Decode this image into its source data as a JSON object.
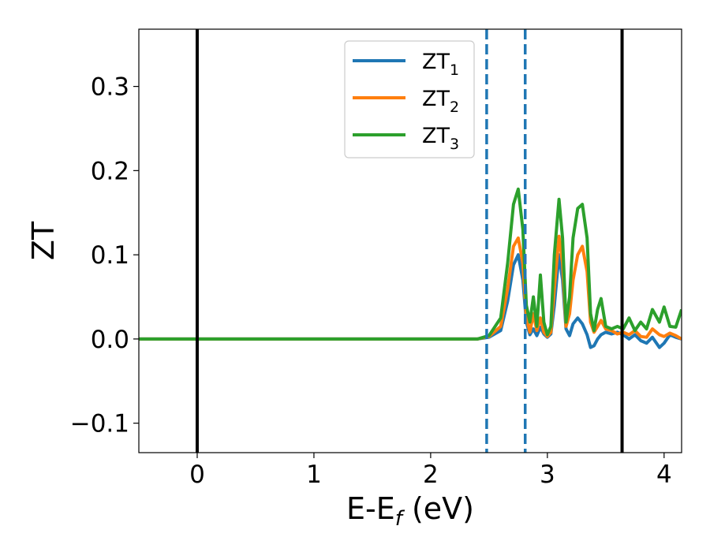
{
  "chart_data": {
    "type": "line",
    "xlabel": "E-E",
    "xlabel_sub": "f",
    "xlabel_unit": " (eV)",
    "ylabel": "ZT",
    "xlim": [
      -0.5,
      4.15
    ],
    "ylim": [
      -0.135,
      0.368
    ],
    "xticks": [
      0,
      1,
      2,
      3,
      4
    ],
    "xtick_labels": [
      "0",
      "1",
      "2",
      "3",
      "4"
    ],
    "yticks": [
      -0.1,
      0.0,
      0.1,
      0.2,
      0.3
    ],
    "ytick_labels": [
      "−0.1",
      "0.0",
      "0.1",
      "0.2",
      "0.3"
    ],
    "grid": false,
    "legend_position": "top-center",
    "vlines": [
      {
        "x": 0.0,
        "style": "solid",
        "color": "#000000"
      },
      {
        "x": 2.48,
        "style": "dashed",
        "color": "#1f77b4"
      },
      {
        "x": 2.81,
        "style": "dashed",
        "color": "#1f77b4"
      },
      {
        "x": 3.64,
        "style": "solid",
        "color": "#000000"
      }
    ],
    "series": [
      {
        "name": "ZT",
        "name_sub": "1",
        "color": "#1f77b4",
        "x": [
          -0.5,
          2.4,
          2.5,
          2.6,
          2.66,
          2.71,
          2.75,
          2.79,
          2.82,
          2.85,
          2.88,
          2.91,
          2.94,
          2.97,
          3.0,
          3.03,
          3.06,
          3.1,
          3.13,
          3.16,
          3.19,
          3.22,
          3.26,
          3.3,
          3.34,
          3.37,
          3.4,
          3.43,
          3.46,
          3.5,
          3.55,
          3.6,
          3.65,
          3.7,
          3.75,
          3.8,
          3.85,
          3.9,
          3.96,
          4.0,
          4.05,
          4.1,
          4.15
        ],
        "y": [
          0.0,
          0.0,
          0.002,
          0.01,
          0.045,
          0.088,
          0.1,
          0.07,
          0.02,
          0.005,
          0.012,
          0.004,
          0.014,
          0.006,
          0.002,
          0.006,
          0.04,
          0.1,
          0.07,
          0.012,
          0.004,
          0.018,
          0.025,
          0.018,
          0.005,
          -0.01,
          -0.008,
          0.0,
          0.005,
          0.008,
          0.006,
          0.008,
          0.005,
          0.0,
          0.005,
          -0.002,
          -0.005,
          0.002,
          -0.01,
          -0.005,
          0.005,
          0.002,
          0.0
        ]
      },
      {
        "name": "ZT",
        "name_sub": "2",
        "color": "#ff7f0e",
        "x": [
          -0.5,
          2.4,
          2.5,
          2.6,
          2.66,
          2.71,
          2.75,
          2.79,
          2.82,
          2.85,
          2.88,
          2.91,
          2.94,
          2.97,
          3.0,
          3.03,
          3.06,
          3.1,
          3.13,
          3.16,
          3.19,
          3.22,
          3.26,
          3.3,
          3.34,
          3.37,
          3.4,
          3.43,
          3.46,
          3.5,
          3.55,
          3.6,
          3.65,
          3.7,
          3.75,
          3.8,
          3.85,
          3.9,
          3.96,
          4.0,
          4.05,
          4.1,
          4.15
        ],
        "y": [
          0.0,
          0.0,
          0.003,
          0.015,
          0.06,
          0.11,
          0.12,
          0.09,
          0.025,
          0.008,
          0.03,
          0.01,
          0.025,
          0.008,
          0.003,
          0.008,
          0.06,
          0.122,
          0.09,
          0.015,
          0.03,
          0.07,
          0.1,
          0.11,
          0.08,
          0.02,
          0.008,
          0.015,
          0.022,
          0.012,
          0.01,
          0.006,
          0.008,
          0.005,
          0.01,
          0.003,
          0.002,
          0.012,
          0.005,
          0.003,
          0.007,
          0.004,
          0.0
        ]
      },
      {
        "name": "ZT",
        "name_sub": "3",
        "color": "#2ca02c",
        "x": [
          -0.5,
          2.4,
          2.5,
          2.6,
          2.66,
          2.71,
          2.75,
          2.79,
          2.82,
          2.85,
          2.88,
          2.91,
          2.94,
          2.97,
          3.0,
          3.03,
          3.06,
          3.1,
          3.13,
          3.16,
          3.19,
          3.22,
          3.26,
          3.3,
          3.34,
          3.37,
          3.4,
          3.43,
          3.46,
          3.5,
          3.55,
          3.6,
          3.65,
          3.7,
          3.75,
          3.8,
          3.85,
          3.9,
          3.96,
          4.0,
          4.05,
          4.1,
          4.15
        ],
        "y": [
          0.0,
          0.0,
          0.004,
          0.025,
          0.09,
          0.16,
          0.178,
          0.13,
          0.04,
          0.02,
          0.05,
          0.015,
          0.076,
          0.02,
          0.005,
          0.015,
          0.1,
          0.166,
          0.12,
          0.02,
          0.05,
          0.12,
          0.155,
          0.16,
          0.12,
          0.03,
          0.01,
          0.035,
          0.048,
          0.015,
          0.012,
          0.015,
          0.012,
          0.025,
          0.01,
          0.02,
          0.012,
          0.035,
          0.02,
          0.038,
          0.015,
          0.014,
          0.035
        ]
      }
    ]
  }
}
